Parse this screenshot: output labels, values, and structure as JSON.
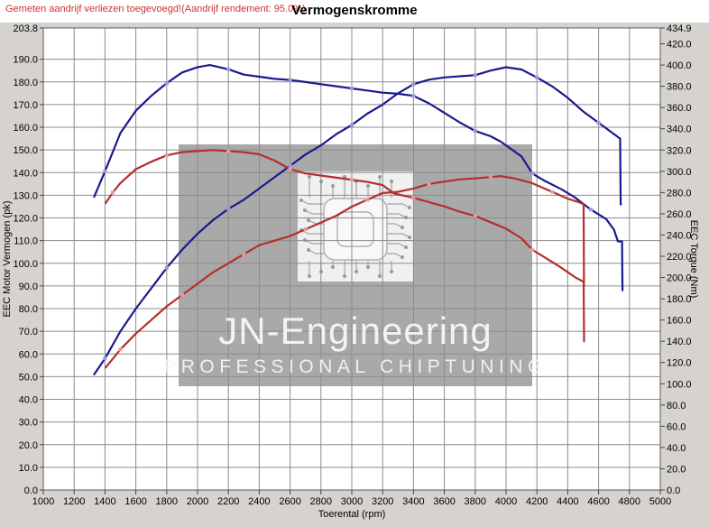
{
  "chart_data": {
    "type": "line",
    "title": "Vermogenskromme",
    "annotation": "Gemeten aandrijf verliezen toegevoegd!(Aandrijf rendement: 95.0%)",
    "annotation_color": "#cc3333",
    "xlabel": "Toerental (rpm)",
    "ylabel_left": "EEC Motor Vermogen (pk)",
    "ylabel_right": "EEC Torque (Nm)",
    "x_range": [
      1000,
      5000
    ],
    "y_left_range": [
      0,
      203.8
    ],
    "y_right_range": [
      0,
      434.9
    ],
    "x_ticks": [
      1000,
      1200,
      1400,
      1600,
      1800,
      2000,
      2200,
      2400,
      2600,
      2800,
      3000,
      3200,
      3400,
      3600,
      3800,
      4000,
      4200,
      4400,
      4600,
      4800,
      5000
    ],
    "y_left_ticks": [
      0,
      10,
      20,
      30,
      40,
      50,
      60,
      70,
      80,
      90,
      100,
      110,
      120,
      130,
      140,
      150,
      160,
      170,
      180,
      190,
      203.8
    ],
    "y_right_ticks": [
      0,
      20,
      40,
      60,
      80,
      100,
      120,
      140,
      160,
      180,
      200,
      220,
      240,
      260,
      280,
      300,
      320,
      340,
      360,
      380,
      400,
      420,
      434.9
    ],
    "grid": true,
    "legend": "none",
    "colors": {
      "tuned": "#1a1a8f",
      "original": "#b52e2e",
      "tuned_marker": "#9a9ad8",
      "original_marker": "#dca0a0",
      "grid": "#8c8c8c",
      "frame": "#5a5a5a",
      "plot_bg": "#ffffff",
      "margin_bg": "#d6d3ce"
    },
    "series": [
      {
        "name": "vermogen-getuned",
        "axis": "left",
        "unit": "pk",
        "color": "#1a1a8f",
        "marker_color": "#9a9ad8",
        "points": [
          [
            1330,
            51
          ],
          [
            1400,
            58
          ],
          [
            1500,
            70
          ],
          [
            1600,
            80
          ],
          [
            1700,
            89
          ],
          [
            1800,
            98
          ],
          [
            1900,
            106
          ],
          [
            2000,
            113
          ],
          [
            2100,
            119
          ],
          [
            2200,
            124
          ],
          [
            2300,
            128
          ],
          [
            2400,
            133
          ],
          [
            2500,
            138
          ],
          [
            2600,
            143
          ],
          [
            2700,
            148
          ],
          [
            2800,
            152
          ],
          [
            2900,
            157
          ],
          [
            3000,
            161
          ],
          [
            3100,
            166
          ],
          [
            3200,
            170
          ],
          [
            3300,
            175
          ],
          [
            3400,
            179
          ],
          [
            3500,
            181
          ],
          [
            3600,
            182
          ],
          [
            3700,
            182.5
          ],
          [
            3800,
            183
          ],
          [
            3900,
            185
          ],
          [
            4000,
            186.5
          ],
          [
            4100,
            185.5
          ],
          [
            4200,
            182
          ],
          [
            4300,
            178
          ],
          [
            4400,
            173
          ],
          [
            4500,
            167
          ],
          [
            4600,
            162
          ],
          [
            4680,
            158
          ],
          [
            4740,
            155
          ],
          [
            4743,
            126
          ],
          [
            4745,
            126
          ]
        ]
      },
      {
        "name": "koppel-getuned",
        "axis": "right",
        "unit": "Nm",
        "color": "#1a1a8f",
        "marker_color": "#9a9ad8",
        "points": [
          [
            1330,
            276
          ],
          [
            1400,
            300
          ],
          [
            1500,
            336
          ],
          [
            1600,
            357
          ],
          [
            1700,
            371
          ],
          [
            1800,
            383
          ],
          [
            1900,
            393
          ],
          [
            2000,
            398
          ],
          [
            2080,
            400
          ],
          [
            2200,
            396
          ],
          [
            2300,
            391
          ],
          [
            2400,
            389
          ],
          [
            2500,
            387
          ],
          [
            2600,
            386
          ],
          [
            2700,
            384
          ],
          [
            2800,
            382
          ],
          [
            2900,
            380
          ],
          [
            3000,
            378
          ],
          [
            3100,
            376
          ],
          [
            3200,
            374
          ],
          [
            3300,
            373
          ],
          [
            3400,
            371
          ],
          [
            3500,
            364
          ],
          [
            3600,
            355
          ],
          [
            3700,
            346
          ],
          [
            3800,
            338
          ],
          [
            3900,
            333
          ],
          [
            3965,
            328
          ],
          [
            4100,
            314
          ],
          [
            4170,
            298
          ],
          [
            4250,
            291
          ],
          [
            4360,
            283
          ],
          [
            4450,
            275
          ],
          [
            4550,
            264
          ],
          [
            4650,
            255
          ],
          [
            4700,
            245
          ],
          [
            4725,
            234
          ],
          [
            4752,
            234
          ],
          [
            4755,
            188
          ]
        ]
      },
      {
        "name": "vermogen-origineel",
        "axis": "left",
        "unit": "pk",
        "color": "#b52e2e",
        "marker_color": "#dca0a0",
        "points": [
          [
            1404,
            54
          ],
          [
            1500,
            62
          ],
          [
            1600,
            69
          ],
          [
            1700,
            75
          ],
          [
            1800,
            81
          ],
          [
            1900,
            86
          ],
          [
            2000,
            91
          ],
          [
            2100,
            96
          ],
          [
            2200,
            100
          ],
          [
            2300,
            104
          ],
          [
            2400,
            108
          ],
          [
            2500,
            110
          ],
          [
            2600,
            112
          ],
          [
            2700,
            115
          ],
          [
            2800,
            118
          ],
          [
            2900,
            121
          ],
          [
            3000,
            125
          ],
          [
            3100,
            128
          ],
          [
            3200,
            131
          ],
          [
            3300,
            131.5
          ],
          [
            3400,
            133
          ],
          [
            3500,
            135
          ],
          [
            3600,
            136
          ],
          [
            3700,
            137
          ],
          [
            3800,
            137.5
          ],
          [
            3900,
            138
          ],
          [
            3960,
            138.5
          ],
          [
            4050,
            137.5
          ],
          [
            4164,
            135.5
          ],
          [
            4300,
            131.5
          ],
          [
            4400,
            128.5
          ],
          [
            4470,
            127
          ],
          [
            4503,
            126
          ],
          [
            4505,
            90
          ]
        ]
      },
      {
        "name": "koppel-origineel",
        "axis": "right",
        "unit": "Nm",
        "color": "#b52e2e",
        "marker_color": "#dca0a0",
        "points": [
          [
            1404,
            270
          ],
          [
            1450,
            280
          ],
          [
            1500,
            289
          ],
          [
            1600,
            302
          ],
          [
            1700,
            309
          ],
          [
            1800,
            315
          ],
          [
            1900,
            318
          ],
          [
            2000,
            319
          ],
          [
            2100,
            320
          ],
          [
            2200,
            319
          ],
          [
            2300,
            318
          ],
          [
            2400,
            316
          ],
          [
            2500,
            310
          ],
          [
            2600,
            302
          ],
          [
            2700,
            298
          ],
          [
            2800,
            296
          ],
          [
            2900,
            294
          ],
          [
            3000,
            292
          ],
          [
            3100,
            290
          ],
          [
            3200,
            287
          ],
          [
            3275,
            279
          ],
          [
            3400,
            275
          ],
          [
            3500,
            271
          ],
          [
            3600,
            267
          ],
          [
            3700,
            262
          ],
          [
            3800,
            258
          ],
          [
            3900,
            252
          ],
          [
            4000,
            246
          ],
          [
            4100,
            237
          ],
          [
            4170,
            226
          ],
          [
            4228,
            221
          ],
          [
            4350,
            210
          ],
          [
            4450,
            200
          ],
          [
            4503,
            196
          ],
          [
            4506,
            140
          ]
        ]
      }
    ],
    "watermark": {
      "line1": "JN-Engineering",
      "line2": "PROFESSIONAL CHIPTUNING",
      "box_color": "#a9a9a9",
      "text_color": "#f7f7f7"
    }
  }
}
